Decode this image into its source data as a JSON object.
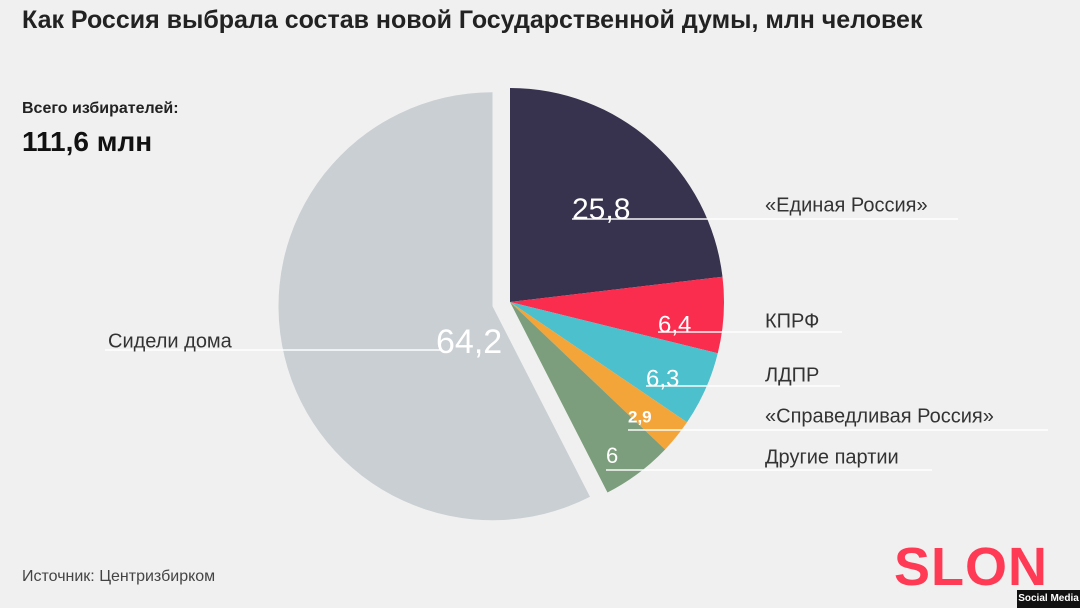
{
  "title": "Как Россия выбрала состав новой Государственной думы, млн человек",
  "total": {
    "label": "Всего избирателей:",
    "value": "111,6 млн"
  },
  "source": "Источник: Центризбирком",
  "brand": "SLON",
  "credit": "Social Media",
  "chart_data": {
    "type": "pie",
    "unit": "млн человек",
    "slices": [
      {
        "label": "«Единая Россия»",
        "value": 25.8,
        "value_label": "25,8",
        "color": "#37324e"
      },
      {
        "label": "КПРФ",
        "value": 6.4,
        "value_label": "6,4",
        "color": "#fb2d4f"
      },
      {
        "label": "ЛДПР",
        "value": 6.3,
        "value_label": "6,3",
        "color": "#4cc0cc"
      },
      {
        "label": "«Справедливая Россия»",
        "value": 2.9,
        "value_label": "2,9",
        "color": "#f3a53a"
      },
      {
        "label": "Другие партии",
        "value": 6,
        "value_label": "6",
        "color": "#7c9e7c"
      },
      {
        "label": "Сидели дома",
        "value": 64.2,
        "value_label": "64,2",
        "color": "#c9cfd2",
        "exploded": true
      }
    ]
  }
}
